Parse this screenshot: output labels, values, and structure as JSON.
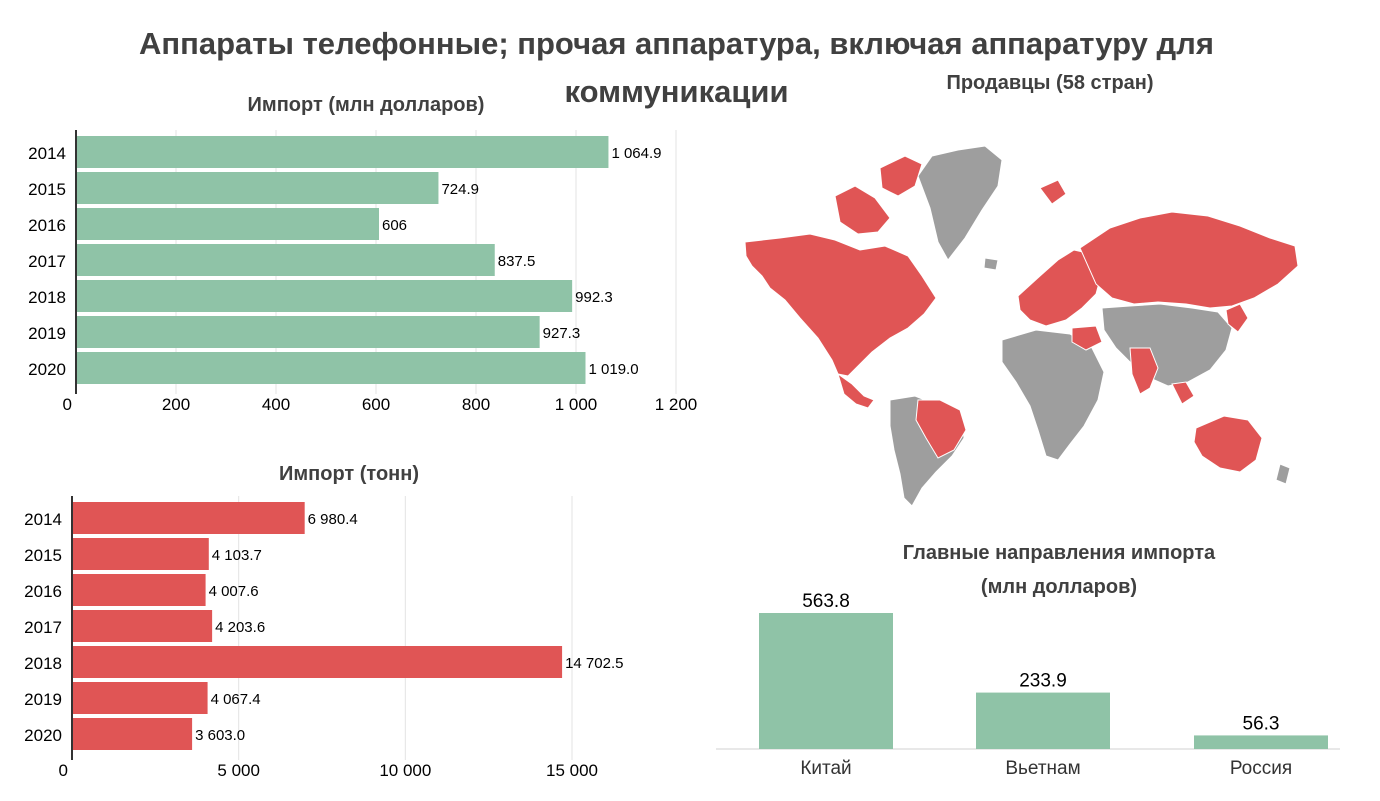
{
  "title_line1": "Аппараты телефонные; прочая аппаратура, включая аппаратуру для",
  "title_line2": "коммуникации",
  "map": {
    "title": "Продавцы (58 стран)",
    "highlight_color": "#e05555",
    "other_color": "#9e9e9e"
  },
  "chart_data": [
    {
      "type": "bar",
      "orientation": "horizontal",
      "title": "Импорт (млн долларов)",
      "categories": [
        "2014",
        "2015",
        "2016",
        "2017",
        "2018",
        "2019",
        "2020"
      ],
      "values": [
        1064.9,
        724.9,
        606,
        837.5,
        992.3,
        927.3,
        1019.0
      ],
      "value_labels": [
        "1 064.9",
        "724.9",
        "606",
        "837.5",
        "992.3",
        "927.3",
        "1 019.0"
      ],
      "xlim": [
        0,
        1200
      ],
      "ticks": [
        0,
        200,
        400,
        600,
        800,
        1000,
        1200
      ],
      "tick_labels": [
        "0",
        "200",
        "400",
        "600",
        "800",
        "1 000",
        "1 200"
      ],
      "color": "#8fc3a7",
      "grid": true
    },
    {
      "type": "bar",
      "orientation": "horizontal",
      "title": "Импорт (тонн)",
      "categories": [
        "2014",
        "2015",
        "2016",
        "2017",
        "2018",
        "2019",
        "2020"
      ],
      "values": [
        6980.4,
        4103.7,
        4007.6,
        4203.6,
        14702.5,
        4067.4,
        3603.0
      ],
      "value_labels": [
        "6 980.4",
        "4 103.7",
        "4 007.6",
        "4 203.6",
        "14 702.5",
        "4 067.4",
        "3 603.0"
      ],
      "xlim": [
        0,
        15000
      ],
      "ticks": [
        0,
        5000,
        10000,
        15000
      ],
      "tick_labels": [
        "0",
        "5 000",
        "10 000",
        "15 000"
      ],
      "color": "#e05555",
      "grid": true
    },
    {
      "type": "bar",
      "orientation": "vertical",
      "title": "Главные направления импорта",
      "subtitle": "(млн долларов)",
      "categories": [
        "Китай",
        "Вьетнам",
        "Россия"
      ],
      "values": [
        563.8,
        233.9,
        56.3
      ],
      "value_labels": [
        "563.8",
        "233.9",
        "56.3"
      ],
      "color": "#8fc3a7"
    }
  ]
}
